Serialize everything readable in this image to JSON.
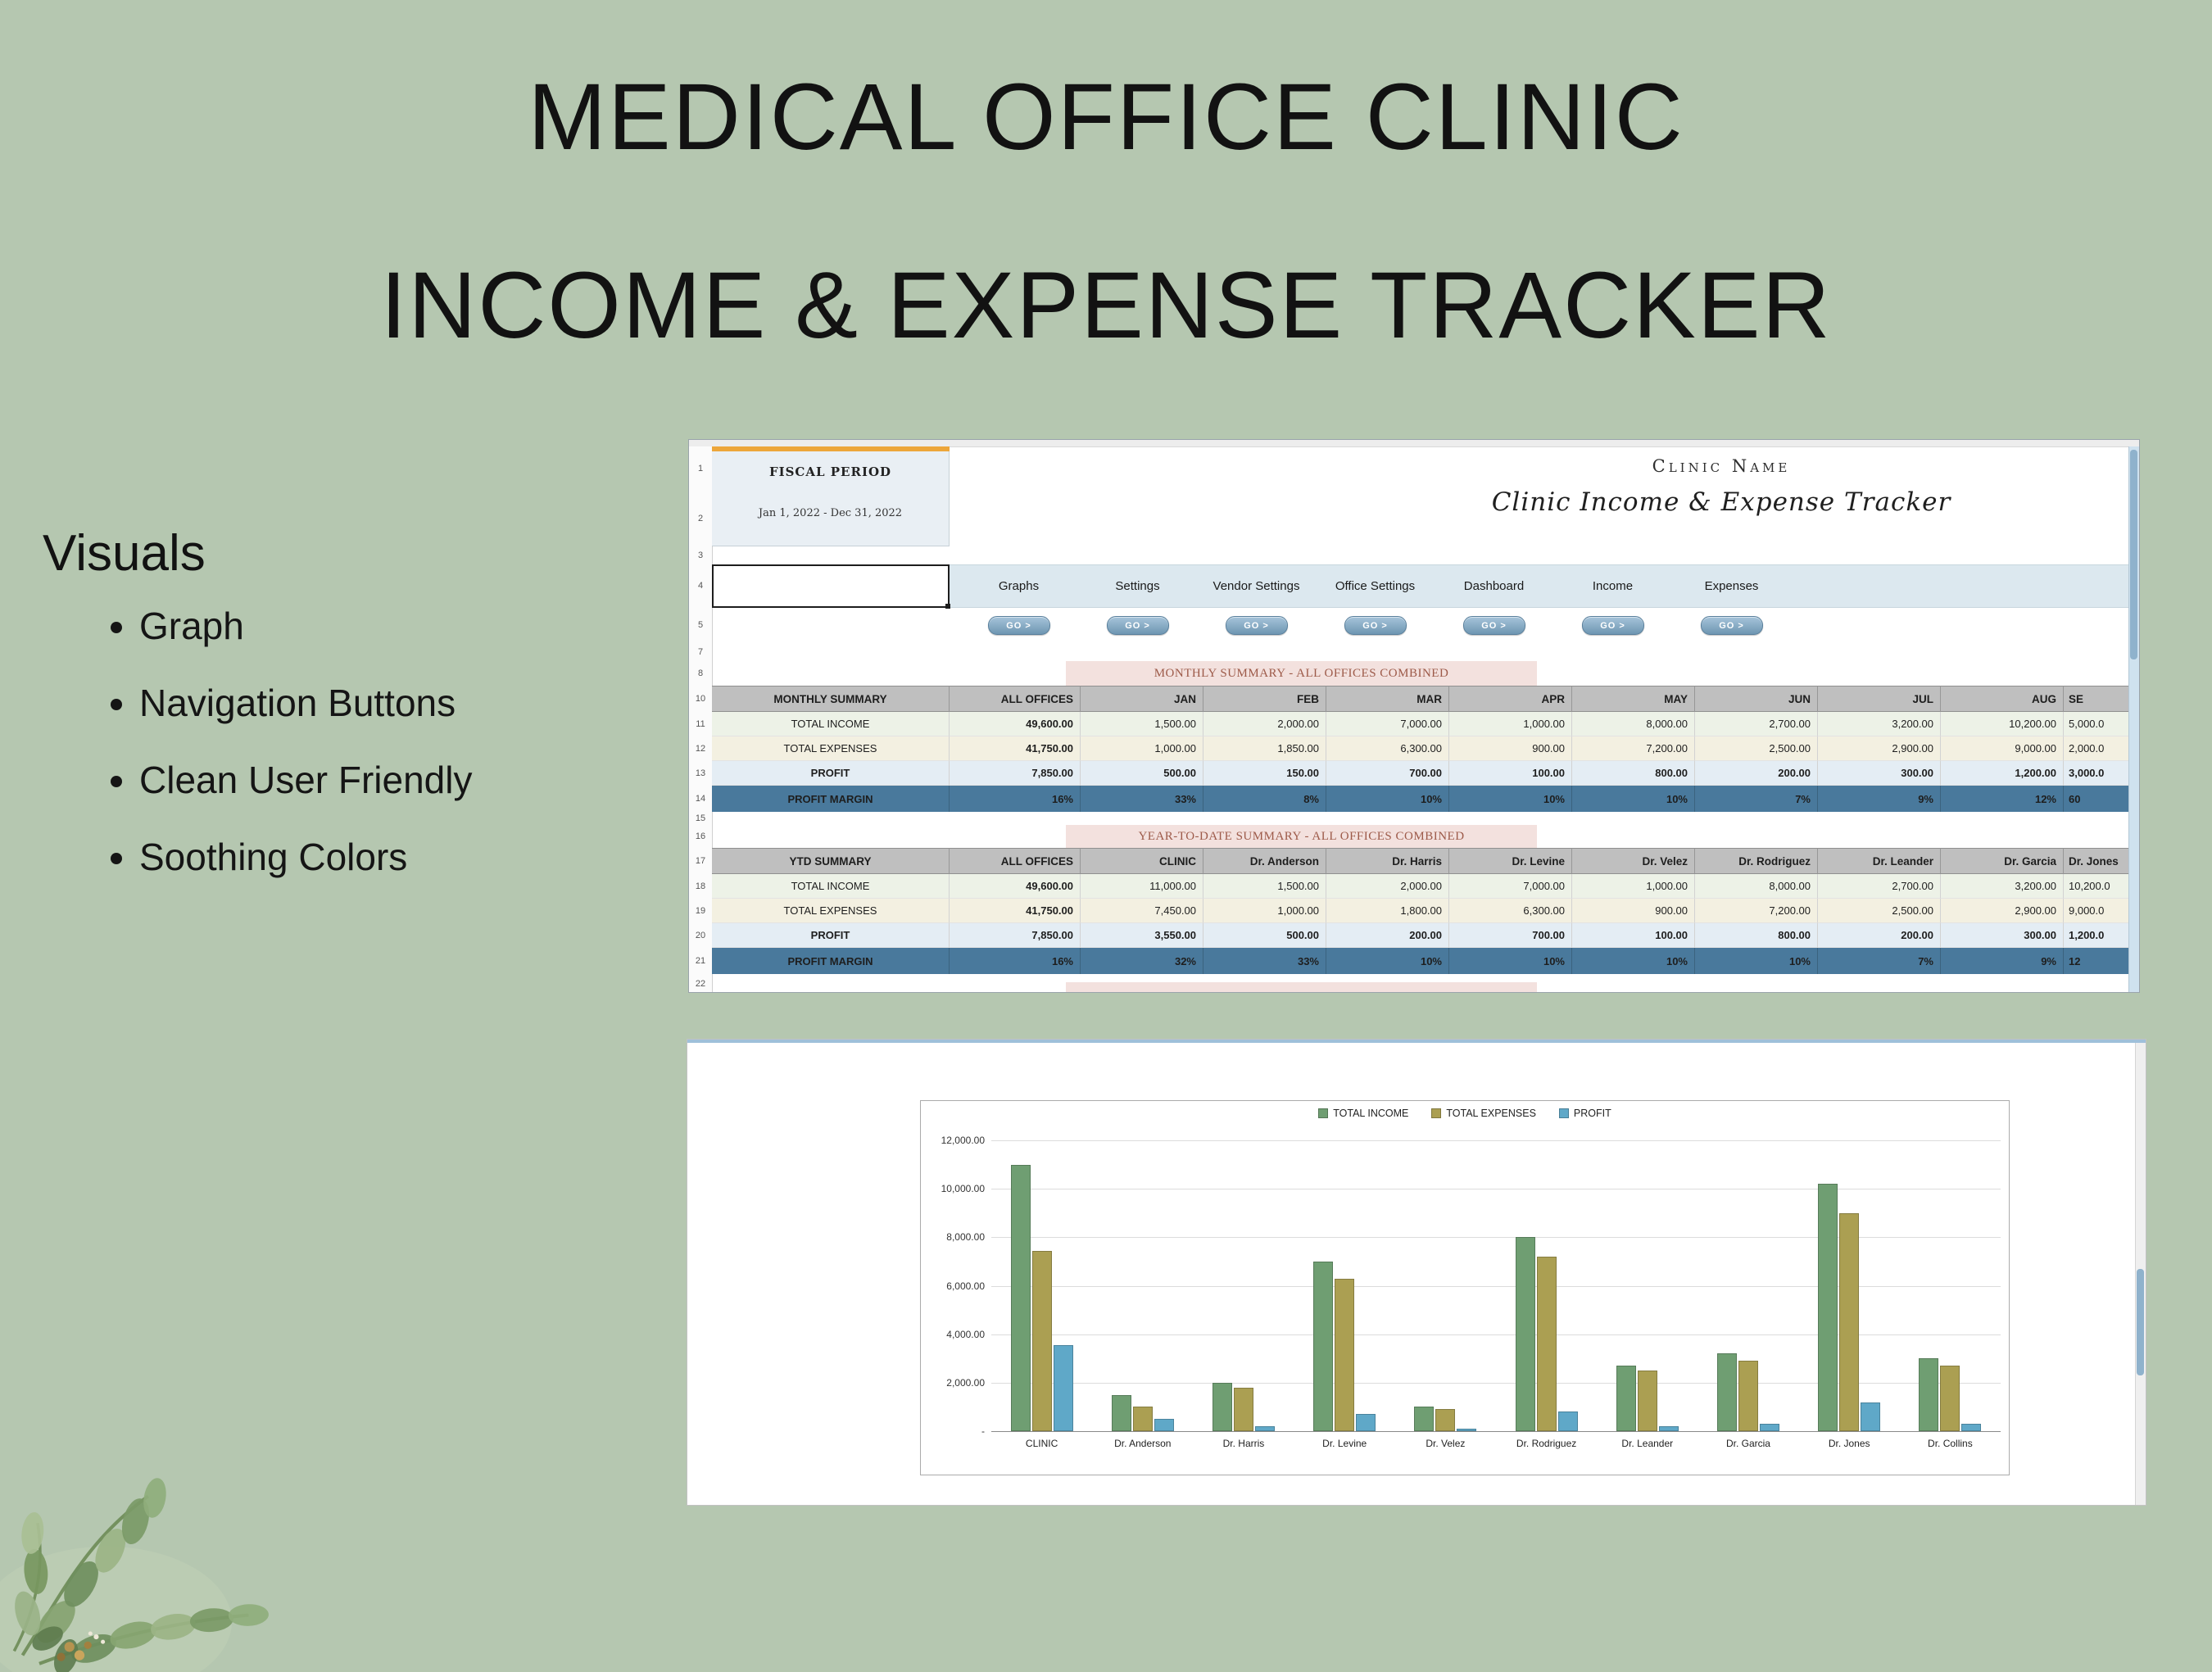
{
  "page": {
    "title_line1": "MEDICAL OFFICE CLINIC",
    "title_line2": "INCOME & EXPENSE TRACKER",
    "background_color": "#b5c7b0"
  },
  "visuals": {
    "heading": "Visuals",
    "bullets": [
      "Graph",
      "Navigation Buttons",
      "Clean User Friendly",
      "Soothing Colors"
    ]
  },
  "spreadsheet": {
    "fiscal_period_label": "FISCAL PERIOD",
    "fiscal_period_value": "Jan 1, 2022 - Dec 31, 2022",
    "clinic_name": "Clinic Name",
    "tracker_title": "Clinic Income & Expense Tracker",
    "row_numbers": [
      "1",
      "2",
      "3",
      "4",
      "5",
      "7",
      "8",
      "10",
      "11",
      "12",
      "13",
      "14",
      "15",
      "16",
      "17",
      "18",
      "19",
      "20",
      "21",
      "22"
    ],
    "nav_tabs": [
      "Graphs",
      "Settings",
      "Vendor Settings",
      "Office Settings",
      "Dashboard",
      "Income",
      "Expenses"
    ],
    "go_button_label": "GO >",
    "monthly_section_title": "MONTHLY SUMMARY - ALL OFFICES COMBINED",
    "ytd_section_title": "YEAR-TO-DATE SUMMARY - ALL OFFICES COMBINED",
    "monthly_table": {
      "headers": [
        "MONTHLY SUMMARY",
        "ALL OFFICES",
        "JAN",
        "FEB",
        "MAR",
        "APR",
        "MAY",
        "JUN",
        "JUL",
        "AUG",
        "SE"
      ],
      "rows": [
        {
          "label": "TOTAL INCOME",
          "values": [
            "49,600.00",
            "1,500.00",
            "2,000.00",
            "7,000.00",
            "1,000.00",
            "8,000.00",
            "2,700.00",
            "3,200.00",
            "10,200.00",
            "5,000.0"
          ]
        },
        {
          "label": "TOTAL EXPENSES",
          "values": [
            "41,750.00",
            "1,000.00",
            "1,850.00",
            "6,300.00",
            "900.00",
            "7,200.00",
            "2,500.00",
            "2,900.00",
            "9,000.00",
            "2,000.0"
          ]
        },
        {
          "label": "PROFIT",
          "values": [
            "7,850.00",
            "500.00",
            "150.00",
            "700.00",
            "100.00",
            "800.00",
            "200.00",
            "300.00",
            "1,200.00",
            "3,000.0"
          ]
        },
        {
          "label": "PROFIT MARGIN",
          "values": [
            "16%",
            "33%",
            "8%",
            "10%",
            "10%",
            "10%",
            "7%",
            "9%",
            "12%",
            "60"
          ]
        }
      ]
    },
    "ytd_table": {
      "headers": [
        "YTD SUMMARY",
        "ALL OFFICES",
        "CLINIC",
        "Dr. Anderson",
        "Dr. Harris",
        "Dr. Levine",
        "Dr. Velez",
        "Dr. Rodriguez",
        "Dr. Leander",
        "Dr. Garcia",
        "Dr. Jones"
      ],
      "rows": [
        {
          "label": "TOTAL INCOME",
          "values": [
            "49,600.00",
            "11,000.00",
            "1,500.00",
            "2,000.00",
            "7,000.00",
            "1,000.00",
            "8,000.00",
            "2,700.00",
            "3,200.00",
            "10,200.0"
          ]
        },
        {
          "label": "TOTAL EXPENSES",
          "values": [
            "41,750.00",
            "7,450.00",
            "1,000.00",
            "1,800.00",
            "6,300.00",
            "900.00",
            "7,200.00",
            "2,500.00",
            "2,900.00",
            "9,000.0"
          ]
        },
        {
          "label": "PROFIT",
          "values": [
            "7,850.00",
            "3,550.00",
            "500.00",
            "200.00",
            "700.00",
            "100.00",
            "800.00",
            "200.00",
            "300.00",
            "1,200.0"
          ]
        },
        {
          "label": "PROFIT MARGIN",
          "values": [
            "16%",
            "32%",
            "33%",
            "10%",
            "10%",
            "10%",
            "10%",
            "7%",
            "9%",
            "12"
          ]
        }
      ]
    }
  },
  "chart_data": {
    "type": "bar",
    "title": "",
    "categories": [
      "CLINIC",
      "Dr. Anderson",
      "Dr. Harris",
      "Dr. Levine",
      "Dr. Velez",
      "Dr. Rodriguez",
      "Dr. Leander",
      "Dr. Garcia",
      "Dr. Jones",
      "Dr. Collins"
    ],
    "series": [
      {
        "name": "TOTAL INCOME",
        "color": "#6f9e72",
        "values": [
          11000,
          1500,
          2000,
          7000,
          1000,
          8000,
          2700,
          3200,
          10200,
          3000
        ]
      },
      {
        "name": "TOTAL EXPENSES",
        "color": "#ab9f52",
        "values": [
          7450,
          1000,
          1800,
          6300,
          900,
          7200,
          2500,
          2900,
          9000,
          2700
        ]
      },
      {
        "name": "PROFIT",
        "color": "#5fa8c8",
        "values": [
          3550,
          500,
          200,
          700,
          100,
          800,
          200,
          300,
          1200,
          300
        ]
      }
    ],
    "y_ticks": [
      "12,000.00",
      "10,000.00",
      "8,000.00",
      "6,000.00",
      "4,000.00",
      "2,000.00",
      "-"
    ],
    "ylim": [
      0,
      12000
    ],
    "legend_position": "top",
    "grid": true
  },
  "colors": {
    "background": "#b5c7b0",
    "section_band": "#f3e1de",
    "section_band_text": "#9d5a49",
    "header_gray": "#bfbfbf",
    "profit_margin_band": "#49799c",
    "income_row": "#edf2e7",
    "expenses_row": "#f3f0e1",
    "profit_row": "#e4edf4",
    "nav_band": "#dce8ef",
    "go_button": "#6e96b2",
    "accent_orange": "#eda63a"
  }
}
